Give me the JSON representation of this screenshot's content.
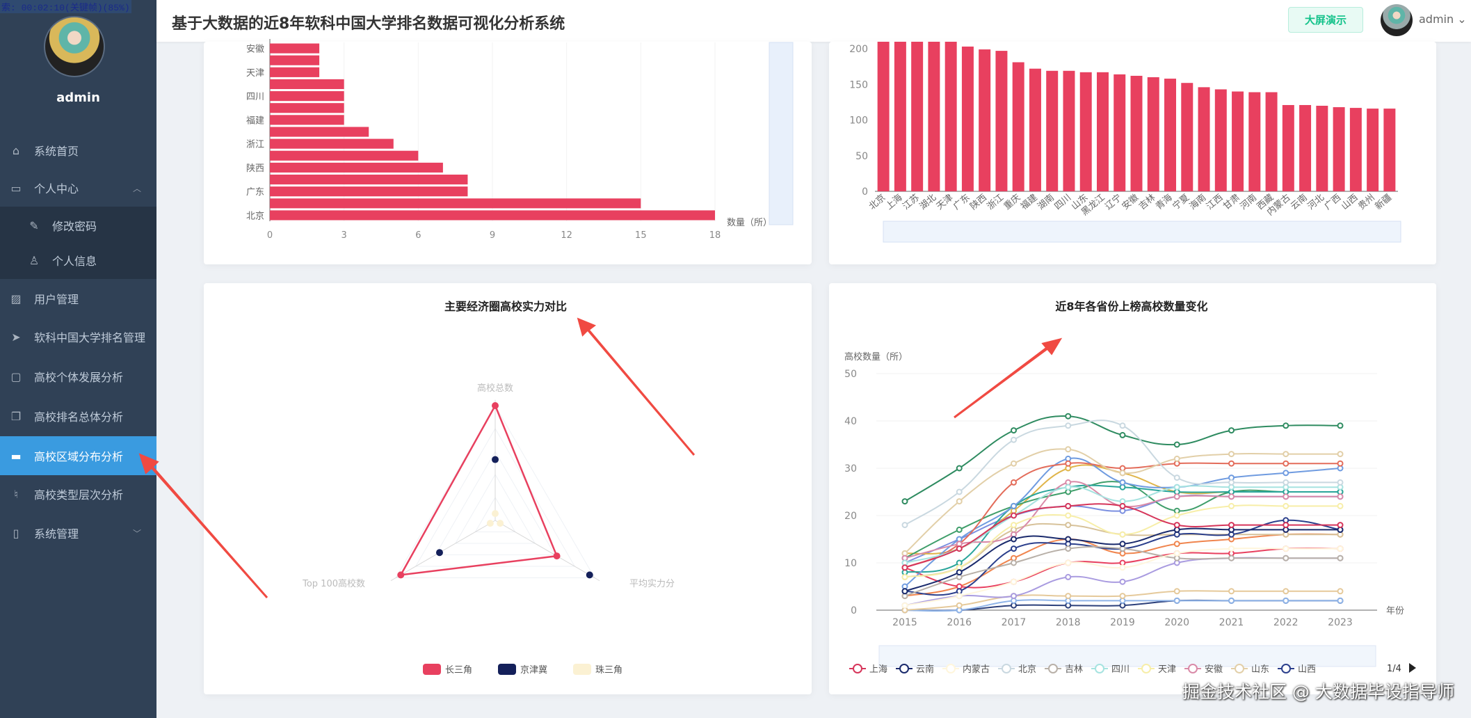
{
  "recorder_overlay": "索: 00:02:10(关键帧)(85%)",
  "app": {
    "title": "基于大数据的近8年软科中国大学排名数据可视化分析系统",
    "big_screen_button": "大屏演示",
    "user": "admin"
  },
  "sidebar": {
    "username": "admin",
    "items": [
      {
        "label": "系统首页",
        "icon": "home-icon"
      },
      {
        "label": "个人中心",
        "icon": "card-icon",
        "expanded": true
      },
      {
        "label": "修改密码",
        "icon": "edit-icon",
        "sub": true
      },
      {
        "label": "个人信息",
        "icon": "user-icon",
        "sub": true
      },
      {
        "label": "用户管理",
        "icon": "chart-icon"
      },
      {
        "label": "软科中国大学排名管理",
        "icon": "send-icon"
      },
      {
        "label": "高校个体发展分析",
        "icon": "message-icon"
      },
      {
        "label": "高校排名总体分析",
        "icon": "copy-icon"
      },
      {
        "label": "高校区域分布分析",
        "icon": "monitor-icon",
        "active": true
      },
      {
        "label": "高校类型层次分析",
        "icon": "bell-off-icon"
      },
      {
        "label": "系统管理",
        "icon": "microphone-icon"
      }
    ]
  },
  "accent": "#3a9be0",
  "watermark": "掘金技术社区 @ 大数据毕设指导师",
  "chart_data": [
    {
      "type": "bar",
      "orientation": "horizontal",
      "xlabel": "数量（所）",
      "xlim": [
        0,
        18
      ],
      "xticks": [
        0,
        3,
        6,
        9,
        12,
        15,
        18
      ],
      "categories": [
        "北京",
        "",
        "广东",
        "",
        "陕西",
        "",
        "浙江",
        "",
        "福建",
        "",
        "四川",
        "",
        "天津",
        "",
        "安徽"
      ],
      "values": [
        18,
        15,
        8,
        8,
        7,
        6,
        5,
        4,
        3,
        3,
        3,
        3,
        2,
        2,
        2
      ],
      "color": "#e8405f"
    },
    {
      "type": "bar",
      "yticks": [
        0,
        50,
        100,
        150,
        200
      ],
      "ylim": [
        0,
        210
      ],
      "categories": [
        "北京",
        "上海",
        "江苏",
        "湖北",
        "天津",
        "广东",
        "陕西",
        "浙江",
        "重庆",
        "福建",
        "湖南",
        "四川",
        "山东",
        "黑龙江",
        "辽宁",
        "安徽",
        "吉林",
        "青海",
        "宁夏",
        "海南",
        "江西",
        "甘肃",
        "河南",
        "西藏",
        "内蒙古",
        "云南",
        "河北",
        "广西",
        "山西",
        "贵州",
        "新疆"
      ],
      "values": [
        210,
        210,
        210,
        210,
        210,
        203,
        199,
        197,
        181,
        172,
        169,
        169,
        167,
        167,
        164,
        162,
        160,
        158,
        152,
        146,
        143,
        140,
        139,
        139,
        121,
        121,
        120,
        118,
        117,
        116,
        116
      ],
      "color": "#e8405f"
    },
    {
      "type": "radar",
      "title": "主要经济圈高校实力对比",
      "indicators": [
        "高校总数",
        "平均实力分",
        "Top 100高校数"
      ],
      "series": [
        {
          "name": "长三角",
          "color": "#e8405f",
          "values": [
            1.0,
            0.62,
            0.95
          ]
        },
        {
          "name": "京津冀",
          "color": "#14205a",
          "values": [
            0.53,
            0.95,
            0.56
          ]
        },
        {
          "name": "珠三角",
          "color": "#fbf1d3",
          "values": [
            0.06,
            0.05,
            0.05
          ]
        }
      ]
    },
    {
      "type": "line",
      "title": "近8年各省份上榜高校数量变化",
      "ylabel": "高校数量（所）",
      "xlabel": "年份",
      "ylim": [
        0,
        50
      ],
      "yticks": [
        0,
        10,
        20,
        30,
        40,
        50
      ],
      "x": [
        "2015",
        "2016",
        "2017",
        "2018",
        "2019",
        "2020",
        "2021",
        "2022",
        "2023"
      ],
      "legend_page": "1/4",
      "series": [
        {
          "name": "上海",
          "color": "#d6355a",
          "values": [
            9,
            13,
            20,
            22,
            22,
            18,
            18,
            18,
            18
          ]
        },
        {
          "name": "云南",
          "color": "#1a2a6c",
          "values": [
            4,
            8,
            15,
            15,
            14,
            17,
            17,
            17,
            17
          ]
        },
        {
          "name": "内蒙古",
          "color": "#fff6dc",
          "values": [
            1,
            3,
            6,
            10,
            9,
            12,
            13,
            13,
            13
          ]
        },
        {
          "name": "北京",
          "color": "#c9d8e0",
          "values": [
            18,
            25,
            36,
            39,
            39,
            28,
            27,
            27,
            27
          ]
        },
        {
          "name": "吉林",
          "color": "#b8b0a8",
          "values": [
            3,
            7,
            10,
            13,
            13,
            11,
            11,
            11,
            11
          ]
        },
        {
          "name": "四川",
          "color": "#a6e3e0",
          "values": [
            10,
            13,
            20,
            26,
            23,
            26,
            26,
            26,
            26
          ]
        },
        {
          "name": "天津",
          "color": "#f7eea8",
          "values": [
            7,
            9,
            18,
            20,
            16,
            20,
            22,
            22,
            22
          ]
        },
        {
          "name": "安徽",
          "color": "#d98aa8",
          "values": [
            11,
            14,
            16,
            27,
            22,
            24,
            24,
            24,
            24
          ]
        },
        {
          "name": "山东",
          "color": "#e2cfa8",
          "values": [
            12,
            23,
            31,
            34,
            29,
            32,
            33,
            33,
            33
          ]
        },
        {
          "name": "山西",
          "color": "#2b3f8c",
          "values": [
            4,
            4,
            13,
            14,
            13,
            16,
            16,
            19,
            17
          ]
        },
        {
          "color": "#2e8b60",
          "values": [
            23,
            30,
            38,
            41,
            37,
            35,
            38,
            39,
            39
          ]
        },
        {
          "color": "#e36c5a",
          "values": [
            9,
            14,
            27,
            31,
            30,
            31,
            31,
            31,
            31
          ]
        },
        {
          "color": "#6f9be0",
          "values": [
            5,
            15,
            22,
            32,
            27,
            26,
            28,
            29,
            30
          ]
        },
        {
          "color": "#2aa59a",
          "values": [
            8,
            10,
            22,
            26,
            26,
            25,
            25,
            25,
            25
          ]
        },
        {
          "color": "#3f9e6a",
          "values": [
            11,
            17,
            22,
            25,
            27,
            21,
            25,
            25,
            25
          ]
        },
        {
          "color": "#e0b54a",
          "values": [
            12,
            13,
            21,
            30,
            29,
            25,
            25,
            25,
            25
          ]
        },
        {
          "color": "#7b8fe0",
          "values": [
            10,
            15,
            20,
            22,
            21,
            24,
            24,
            24,
            24
          ]
        },
        {
          "color": "#d7c29a",
          "values": [
            7,
            9,
            17,
            18,
            16,
            16,
            16,
            16,
            16
          ]
        },
        {
          "color": "#e8405f",
          "values": [
            9,
            5,
            6,
            10,
            10,
            12,
            12,
            13,
            13
          ]
        },
        {
          "color": "#f0854e",
          "values": [
            3,
            5,
            11,
            15,
            12,
            14,
            15,
            16,
            16
          ]
        },
        {
          "color": "#a99be0",
          "values": [
            1,
            3,
            3,
            7,
            6,
            10,
            11,
            11,
            11
          ]
        },
        {
          "color": "#e5c99a",
          "values": [
            0,
            1,
            3,
            3,
            3,
            4,
            4,
            4,
            4
          ]
        },
        {
          "color": "#8fb4e8",
          "values": [
            0,
            0,
            2,
            2,
            2,
            2,
            2,
            2,
            2
          ]
        },
        {
          "color": "#2b3f7a",
          "values": [
            0,
            0,
            1,
            1,
            1,
            2,
            2,
            2,
            2
          ]
        }
      ]
    }
  ]
}
